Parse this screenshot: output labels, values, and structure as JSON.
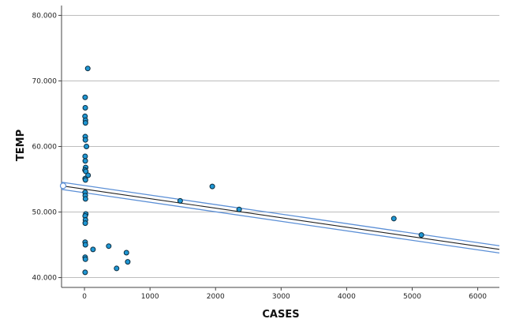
{
  "chart_data": {
    "type": "scatter",
    "xlabel": "CASES",
    "ylabel": "TEMP",
    "xlim": [
      -350,
      6330
    ],
    "ylim": [
      38.5,
      81.5
    ],
    "xticks": [
      0,
      1000,
      2000,
      3000,
      4000,
      5000,
      6000
    ],
    "yticks": [
      40,
      50,
      60,
      70,
      80
    ],
    "ytick_labels": [
      "40.000",
      "50.000",
      "60.000",
      "70.000",
      "80.000"
    ],
    "grid": "horizontal",
    "colors": {
      "point": "#1f97d4",
      "point_edge": "#0b2a3c",
      "fit_outer": "#5b8fd6",
      "fit_center": "#222222"
    },
    "points": [
      {
        "x": 50,
        "y": 71.9
      },
      {
        "x": 10,
        "y": 67.5
      },
      {
        "x": 12,
        "y": 65.9
      },
      {
        "x": 8,
        "y": 64.6
      },
      {
        "x": 15,
        "y": 64.0
      },
      {
        "x": 15,
        "y": 63.6
      },
      {
        "x": 12,
        "y": 61.5
      },
      {
        "x": 14,
        "y": 61.0
      },
      {
        "x": 30,
        "y": 60.0
      },
      {
        "x": 10,
        "y": 58.5
      },
      {
        "x": 12,
        "y": 57.8
      },
      {
        "x": 18,
        "y": 56.8
      },
      {
        "x": 8,
        "y": 56.4
      },
      {
        "x": 20,
        "y": 56.2
      },
      {
        "x": 55,
        "y": 55.6
      },
      {
        "x": 10,
        "y": 55.1
      },
      {
        "x": 15,
        "y": 54.9
      },
      {
        "x": 10,
        "y": 53.0
      },
      {
        "x": 12,
        "y": 52.5
      },
      {
        "x": 15,
        "y": 52.0
      },
      {
        "x": 20,
        "y": 49.7
      },
      {
        "x": 10,
        "y": 49.4
      },
      {
        "x": 15,
        "y": 48.8
      },
      {
        "x": 12,
        "y": 48.3
      },
      {
        "x": 10,
        "y": 45.4
      },
      {
        "x": 14,
        "y": 45.0
      },
      {
        "x": 130,
        "y": 44.3
      },
      {
        "x": 370,
        "y": 44.8
      },
      {
        "x": 640,
        "y": 43.8
      },
      {
        "x": 10,
        "y": 43.1
      },
      {
        "x": 14,
        "y": 42.8
      },
      {
        "x": 660,
        "y": 42.4
      },
      {
        "x": 490,
        "y": 41.4
      },
      {
        "x": 10,
        "y": 40.8
      },
      {
        "x": 1460,
        "y": 51.7
      },
      {
        "x": 1950,
        "y": 53.9
      },
      {
        "x": 2360,
        "y": 50.4
      },
      {
        "x": 4720,
        "y": 49.0
      },
      {
        "x": 5140,
        "y": 46.5
      }
    ],
    "fit_line": {
      "x": [
        -350,
        6330
      ],
      "y": [
        54.0,
        44.3
      ],
      "band": 0.55
    }
  }
}
